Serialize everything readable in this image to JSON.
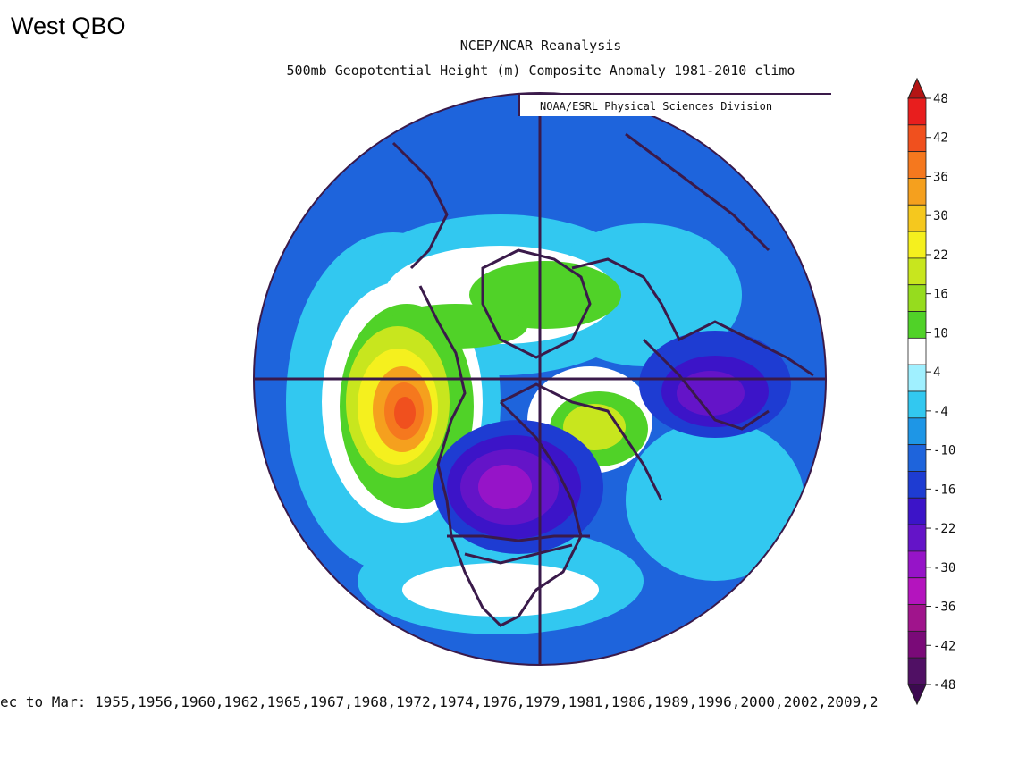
{
  "overlay_title": "West QBO",
  "title_line1": "NCEP/NCAR Reanalysis",
  "title_line2": "500mb Geopotential Height (m) Composite Anomaly 1981-2010 climo",
  "credit": "NOAA/ESRL Physical Sciences Division",
  "bottom_caption": "ec to Mar: 1955,1956,1960,1962,1965,1967,1968,1972,1974,1976,1979,1981,1986,1989,1996,2000,2002,2009,2",
  "colorbar": {
    "labels": [
      "48",
      "42",
      "36",
      "30",
      "22",
      "16",
      "10",
      "4",
      "-4",
      "-10",
      "-16",
      "-22",
      "-30",
      "-36",
      "-42",
      "-48"
    ],
    "colors": [
      "#e81e1e",
      "#f0501e",
      "#f5781e",
      "#f5a01e",
      "#f5c81e",
      "#f5f01e",
      "#c8e61e",
      "#96dc1e",
      "#50d228",
      "#ffffff",
      "#a0f0ff",
      "#32c8f0",
      "#1e96e6",
      "#1e64dc",
      "#1e3cd2",
      "#3c14c8",
      "#6414c8",
      "#9614c8",
      "#b414be",
      "#a0148c",
      "#7a0a78",
      "#501064"
    ]
  },
  "anomaly_colors": {
    "background": "#1e64dc",
    "light_blue": "#32c8f0",
    "pale_blue": "#a0f0ff",
    "white": "#ffffff",
    "green": "#50d228",
    "yellow": "#f5f01e",
    "orange": "#f5781e",
    "red": "#e81e1e",
    "dark_blue": "#1e3cd2",
    "purple": "#6414c8",
    "magenta": "#b414be"
  }
}
